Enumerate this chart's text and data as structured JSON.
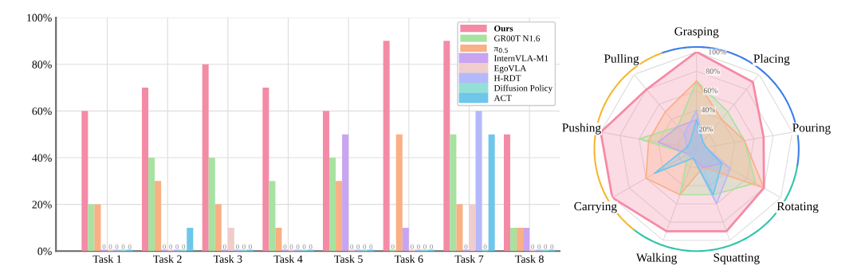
{
  "chart_data": [
    {
      "type": "bar",
      "categories": [
        "Task 1",
        "Task 2",
        "Task 3",
        "Task 4",
        "Task 5",
        "Task 6",
        "Task 7",
        "Task 8"
      ],
      "series": [
        {
          "name": "Ours",
          "color": "#f48ba6",
          "values": [
            60,
            70,
            80,
            70,
            60,
            90,
            90,
            50
          ],
          "value_labels": [
            null,
            null,
            null,
            null,
            null,
            null,
            null,
            null
          ]
        },
        {
          "name": "GR00T N1.6",
          "color": "#a8e2a0",
          "values": [
            20,
            40,
            40,
            30,
            40,
            0,
            50,
            10
          ],
          "value_labels": [
            null,
            null,
            null,
            null,
            null,
            "0",
            null,
            null
          ]
        },
        {
          "name": "π$_{0.5}$",
          "color": "#f9b084",
          "values": [
            20,
            30,
            20,
            10,
            30,
            50,
            20,
            10
          ],
          "value_labels": [
            null,
            null,
            null,
            null,
            null,
            null,
            null,
            null
          ]
        },
        {
          "name": "InternVLA-M1",
          "color": "#c9a4f0",
          "values": [
            0,
            0,
            0,
            0,
            50,
            10,
            0,
            10
          ],
          "value_labels": [
            "0",
            "0",
            "0",
            "0",
            null,
            null,
            "0",
            null
          ]
        },
        {
          "name": "EgoVLA",
          "color": "#f1cccd",
          "values": [
            0,
            0,
            10,
            0,
            0,
            0,
            20,
            0
          ],
          "value_labels": [
            "0",
            "0",
            null,
            "0",
            "0",
            "0",
            null,
            "0"
          ]
        },
        {
          "name": "H-RDT",
          "color": "#b3b9f9",
          "values": [
            0,
            0,
            0,
            0,
            0,
            0,
            60,
            0
          ],
          "value_labels": [
            "0",
            "0",
            "0",
            "0",
            "0",
            "0",
            null,
            "0"
          ]
        },
        {
          "name": "Diffusion Policy",
          "color": "#93e0d4",
          "values": [
            0,
            0,
            0,
            0,
            0,
            0,
            0,
            0
          ],
          "value_labels": [
            "0",
            "0",
            "0",
            "0",
            "0",
            "0",
            "0",
            "0"
          ]
        },
        {
          "name": "ACT",
          "color": "#6ec6ea",
          "values": [
            0,
            10,
            0,
            0,
            0,
            0,
            50,
            0
          ],
          "value_labels": [
            "0",
            null,
            "0",
            "0",
            "0",
            "0",
            null,
            "0"
          ]
        }
      ],
      "ylim": [
        0,
        100
      ],
      "yticks": [
        {
          "value": 0,
          "label": "0%"
        },
        {
          "value": 20,
          "label": "20%"
        },
        {
          "value": 40,
          "label": "40%"
        },
        {
          "value": 60,
          "label": "60%"
        },
        {
          "value": 80,
          "label": "80%"
        },
        {
          "value": 100,
          "label": "100%"
        }
      ],
      "grid": true,
      "legend": "top right"
    },
    {
      "type": "radar",
      "categories": [
        "Grasping",
        "Placing",
        "Pouring",
        "Rotating",
        "Squatting",
        "Walking",
        "Carrying",
        "Pushing",
        "Pulling"
      ],
      "series": [
        {
          "color": "#f48ba6",
          "values": [
            100,
            90,
            70,
            80,
            90,
            90,
            100,
            100,
            80
          ]
        },
        {
          "color": "#a8e2a0",
          "values": [
            70,
            50,
            50,
            70,
            50,
            50,
            10,
            60,
            30
          ]
        },
        {
          "color": "#f9b084",
          "values": [
            70,
            40,
            50,
            80,
            20,
            50,
            60,
            50,
            50
          ]
        },
        {
          "color": "#c9a4f0",
          "values": [
            30,
            10,
            10,
            30,
            20,
            10,
            10,
            40,
            30
          ]
        },
        {
          "color": "#b3b9f9",
          "values": [
            40,
            10,
            10,
            40,
            60,
            10,
            10,
            10,
            20
          ]
        },
        {
          "color": "#6ec6ea",
          "values": [
            30,
            10,
            10,
            30,
            50,
            10,
            50,
            10,
            10
          ]
        }
      ],
      "ylim": [
        0,
        100
      ],
      "yticks": [
        {
          "value": 20,
          "label": "20%"
        },
        {
          "value": 40,
          "label": "40%"
        },
        {
          "value": 60,
          "label": "60%"
        },
        {
          "value": 80,
          "label": "80%"
        },
        {
          "value": 100,
          "label": "100%"
        }
      ]
    }
  ]
}
